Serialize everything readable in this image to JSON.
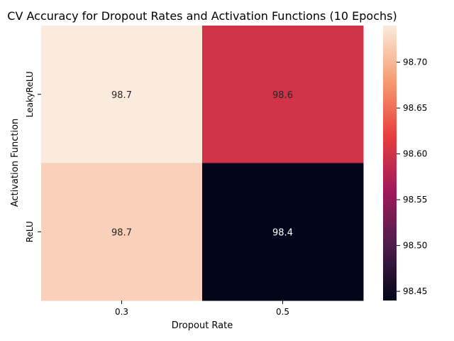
{
  "chart_data": {
    "type": "heatmap",
    "title": "CV Accuracy for Dropout Rates and Activation Functions (10 Epochs)",
    "xlabel": "Dropout Rate",
    "ylabel": "Activation Function",
    "x_categories": [
      "0.3",
      "0.5"
    ],
    "y_categories": [
      "LeakyReLU",
      "ReLU"
    ],
    "values": [
      [
        98.74,
        98.6
      ],
      [
        98.72,
        98.44
      ]
    ],
    "cell_labels": [
      [
        "98.7",
        "98.6"
      ],
      [
        "98.7",
        "98.4"
      ]
    ],
    "colorbar": {
      "min": 98.44,
      "max": 98.74,
      "ticks": [
        98.45,
        98.5,
        98.55,
        98.6,
        98.65,
        98.7
      ],
      "tick_labels": [
        "98.45",
        "98.50",
        "98.55",
        "98.60",
        "98.65",
        "98.70"
      ]
    },
    "colormap": [
      "#03051a",
      "#4c1d4b",
      "#a11a5b",
      "#e83f3f",
      "#f69c73",
      "#faebdd"
    ],
    "grid": false
  }
}
